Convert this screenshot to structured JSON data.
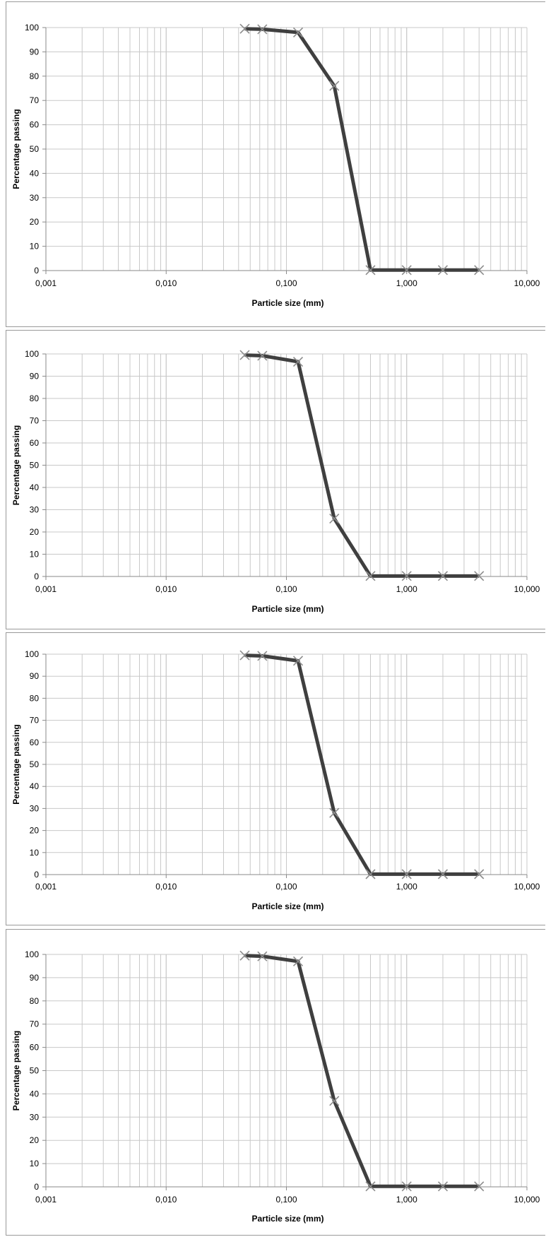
{
  "chart_data": [
    {
      "type": "line",
      "xlabel": "Particle size (mm)",
      "ylabel": "Percentage passing",
      "x_scale": "log",
      "xlim": [
        0.001,
        10
      ],
      "ylim": [
        0,
        100
      ],
      "x_tick_labels": [
        "0,001",
        "0,010",
        "0,100",
        "1,000",
        "10,000"
      ],
      "y_tick_labels": [
        "0",
        "10",
        "20",
        "30",
        "40",
        "50",
        "60",
        "70",
        "80",
        "90",
        "100"
      ],
      "grid": true,
      "marker": "x",
      "line_color": "#3f3f3f",
      "series": [
        {
          "x": [
            0.045,
            0.063,
            0.125,
            0.25,
            0.5,
            1,
            2,
            4
          ],
          "y": [
            99.5,
            99.3,
            98,
            76,
            0.2,
            0.2,
            0.2,
            0.2
          ]
        }
      ]
    },
    {
      "type": "line",
      "xlabel": "Particle size (mm)",
      "ylabel": "Percentage passing",
      "x_scale": "log",
      "xlim": [
        0.001,
        10
      ],
      "ylim": [
        0,
        100
      ],
      "x_tick_labels": [
        "0,001",
        "0,010",
        "0,100",
        "1,000",
        "10,000"
      ],
      "y_tick_labels": [
        "0",
        "10",
        "20",
        "30",
        "40",
        "50",
        "60",
        "70",
        "80",
        "90",
        "100"
      ],
      "grid": true,
      "marker": "x",
      "line_color": "#3f3f3f",
      "series": [
        {
          "x": [
            0.045,
            0.063,
            0.125,
            0.25,
            0.5,
            1,
            2,
            4
          ],
          "y": [
            99.5,
            99.2,
            96.5,
            26,
            0.2,
            0.2,
            0.2,
            0.2
          ]
        }
      ]
    },
    {
      "type": "line",
      "xlabel": "Particle size (mm)",
      "ylabel": "Percentage passing",
      "x_scale": "log",
      "xlim": [
        0.001,
        10
      ],
      "ylim": [
        0,
        100
      ],
      "x_tick_labels": [
        "0,001",
        "0,010",
        "0,100",
        "1,000",
        "10,000"
      ],
      "y_tick_labels": [
        "0",
        "10",
        "20",
        "30",
        "40",
        "50",
        "60",
        "70",
        "80",
        "90",
        "100"
      ],
      "grid": true,
      "marker": "x",
      "line_color": "#3f3f3f",
      "series": [
        {
          "x": [
            0.045,
            0.063,
            0.125,
            0.25,
            0.5,
            1,
            2,
            4
          ],
          "y": [
            99.5,
            99.2,
            97,
            28,
            0.2,
            0.2,
            0.2,
            0.2
          ]
        }
      ]
    },
    {
      "type": "line",
      "xlabel": "Particle size (mm)",
      "ylabel": "Percentage passing",
      "x_scale": "log",
      "xlim": [
        0.001,
        10
      ],
      "ylim": [
        0,
        100
      ],
      "x_tick_labels": [
        "0,001",
        "0,010",
        "0,100",
        "1,000",
        "10,000"
      ],
      "y_tick_labels": [
        "0",
        "10",
        "20",
        "30",
        "40",
        "50",
        "60",
        "70",
        "80",
        "90",
        "100"
      ],
      "grid": true,
      "marker": "x",
      "line_color": "#3f3f3f",
      "series": [
        {
          "x": [
            0.045,
            0.063,
            0.125,
            0.25,
            0.5,
            1,
            2,
            4
          ],
          "y": [
            99.5,
            99.2,
            97,
            37,
            0.2,
            0.2,
            0.2,
            0.2
          ]
        }
      ]
    }
  ]
}
